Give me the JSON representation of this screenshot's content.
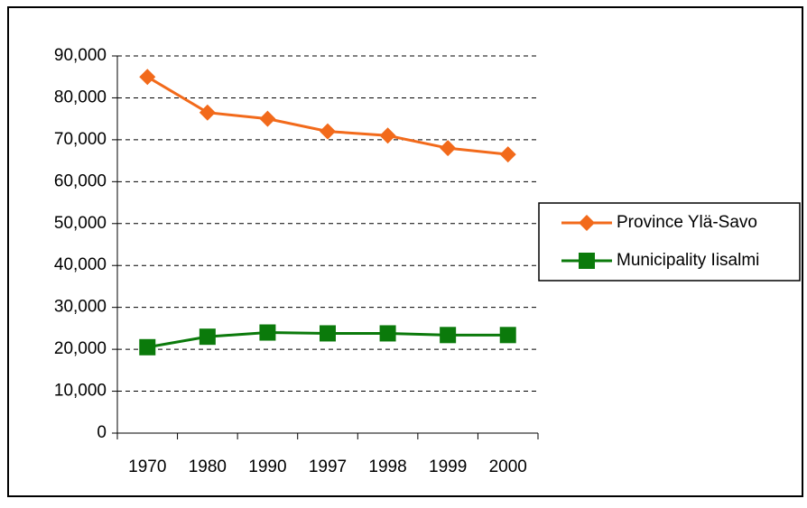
{
  "chart_data": {
    "type": "line",
    "categories": [
      "1970",
      "1980",
      "1990",
      "1997",
      "1998",
      "1999",
      "2000"
    ],
    "series": [
      {
        "name": "Province Ylä-Savo",
        "color": "#f26a1b",
        "marker": "diamond",
        "values": [
          85000,
          76500,
          75000,
          72000,
          71000,
          68000,
          66500
        ]
      },
      {
        "name": "Municipality Iisalmi",
        "color": "#0b7a0b",
        "marker": "square",
        "values": [
          20500,
          23000,
          24000,
          23800,
          23800,
          23400,
          23400
        ]
      }
    ],
    "ylim": [
      0,
      90000
    ],
    "yticks": [
      0,
      {
        "value": 10000,
        "label": "10,000"
      },
      {
        "value": 20000,
        "label": "20,000"
      },
      {
        "value": 30000,
        "label": "30,000"
      },
      {
        "value": 40000,
        "label": "40,000"
      },
      {
        "value": 50000,
        "label": "50,000"
      },
      {
        "value": 60000,
        "label": "60,000"
      },
      {
        "value": 70000,
        "label": "70,000"
      },
      {
        "value": 80000,
        "label": "80,000"
      },
      {
        "value": 90000,
        "label": "90,000"
      }
    ],
    "grid": true,
    "legend": "right"
  }
}
